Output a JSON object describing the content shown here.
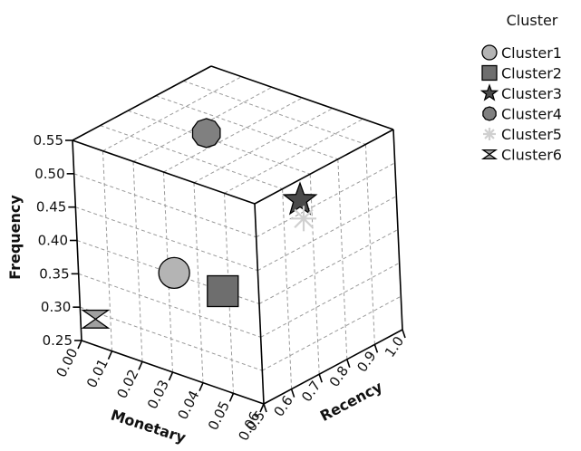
{
  "chart_data": {
    "type": "scatter",
    "projection": "3d-cube",
    "axes": {
      "x": {
        "label": "Monetary",
        "range": [
          0.0,
          0.06
        ],
        "ticks": [
          "0.00",
          "0.01",
          "0.02",
          "0.03",
          "0.04",
          "0.05",
          "0.06"
        ]
      },
      "y": {
        "label": "Frequency",
        "range": [
          0.25,
          0.55
        ],
        "ticks": [
          "0.25",
          "0.30",
          "0.35",
          "0.40",
          "0.45",
          "0.50",
          "0.55"
        ]
      },
      "z": {
        "label": "Recency",
        "range": [
          0.5,
          1.0
        ],
        "ticks": [
          "0.5",
          "0.6",
          "0.7",
          "0.8",
          "0.9",
          "1.0"
        ]
      }
    },
    "grid": true,
    "legend": {
      "title": "Cluster",
      "placement": "top-right"
    },
    "series": [
      {
        "name": "Cluster1",
        "marker": "circle",
        "color": "#b4b4b4",
        "x": 0.032,
        "y": 0.402,
        "z": 0.5
      },
      {
        "name": "Cluster2",
        "marker": "square",
        "color": "#6e6e6e",
        "x": 0.048,
        "y": 0.4,
        "z": 0.5
      },
      {
        "name": "Cluster3",
        "marker": "star",
        "color": "#4a4a4a",
        "x": 0.06,
        "y": 0.52,
        "z": 0.66
      },
      {
        "name": "Cluster4",
        "marker": "pentagon",
        "color": "#808080",
        "x": 0.024,
        "y": 0.55,
        "z": 0.72
      },
      {
        "name": "Cluster5",
        "marker": "asterisk",
        "color": "#d0d0d0",
        "x": 0.06,
        "y": 0.49,
        "z": 0.67
      },
      {
        "name": "Cluster6",
        "marker": "bowtie",
        "color": "#a0a0a0",
        "x": 0.005,
        "y": 0.29,
        "z": 0.5
      }
    ]
  }
}
